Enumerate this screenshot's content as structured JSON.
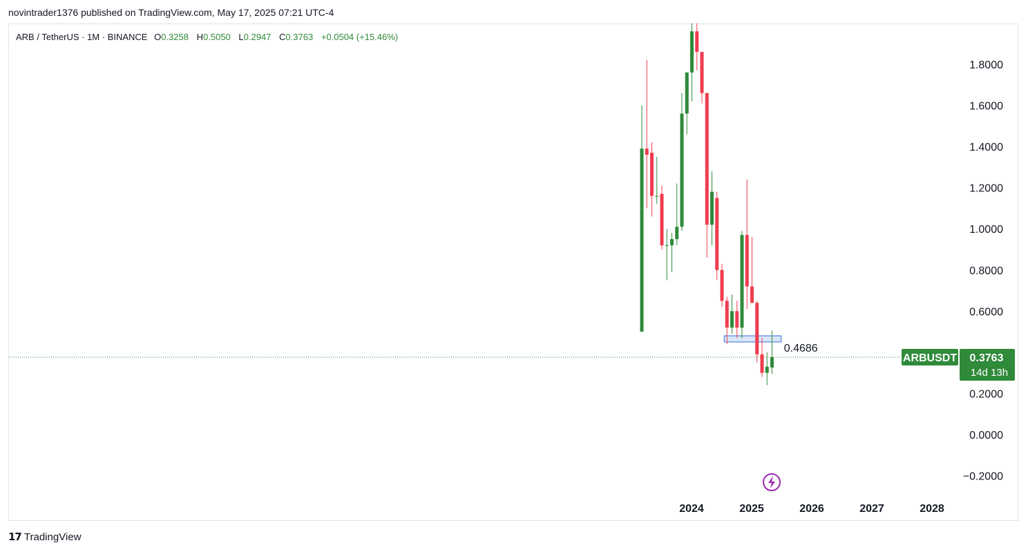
{
  "header": {
    "publish_text": "novintrader1376 published on TradingView.com, May 17, 2025 07:21 UTC-4"
  },
  "legend": {
    "symbol": "ARB / TetherUS · 1M · BINANCE",
    "o_label": "O",
    "o_value": "0.3258",
    "h_label": "H",
    "h_value": "0.5050",
    "l_label": "L",
    "l_value": "0.2947",
    "c_label": "C",
    "c_value": "0.3763",
    "change": "+0.0504 (+15.46%)"
  },
  "price_tag": {
    "ticker": "ARBUSDT",
    "price": "0.3763",
    "countdown": "14d 13h"
  },
  "annotation": {
    "label": "0.4686"
  },
  "footer": {
    "brand": "TradingView"
  },
  "colors": {
    "up": "#2f8a3a",
    "down": "#ef3d4f",
    "price_tag": "#2f8a3a",
    "zone_fill": "#c9dcf7",
    "zone_stroke": "#3b6fd6",
    "flash_icon": "#9c27b0"
  },
  "chart_data": {
    "type": "candlestick",
    "timeframe": "1M",
    "ylim": [
      -0.25,
      2.0
    ],
    "y_ticks": [
      "1.8000",
      "1.6000",
      "1.4000",
      "1.2000",
      "1.0000",
      "0.8000",
      "0.6000",
      "0.2000",
      "0.0000",
      "−0.2000"
    ],
    "y_tick_values": [
      1.8,
      1.6,
      1.4,
      1.2,
      1.0,
      0.8,
      0.6,
      0.2,
      0.0,
      -0.2
    ],
    "x_ticks": [
      "2024",
      "2025",
      "2026",
      "2027",
      "2028"
    ],
    "x_tick_years": [
      2024,
      2025,
      2026,
      2027,
      2028
    ],
    "candles": [
      {
        "t": "2023-03",
        "o": 0.5,
        "h": 1.6,
        "l": 0.5,
        "c": 1.39
      },
      {
        "t": "2023-04",
        "o": 1.39,
        "h": 1.82,
        "l": 1.1,
        "c": 1.36
      },
      {
        "t": "2023-05",
        "o": 1.37,
        "h": 1.42,
        "l": 1.06,
        "c": 1.16
      },
      {
        "t": "2023-06",
        "o": 1.16,
        "h": 1.35,
        "l": 1.12,
        "c": 1.16
      },
      {
        "t": "2023-07",
        "o": 1.17,
        "h": 1.21,
        "l": 0.9,
        "c": 0.92
      },
      {
        "t": "2023-08",
        "o": 0.92,
        "h": 1.0,
        "l": 0.75,
        "c": 0.92
      },
      {
        "t": "2023-09",
        "o": 0.92,
        "h": 0.98,
        "l": 0.79,
        "c": 0.95
      },
      {
        "t": "2023-10",
        "o": 0.95,
        "h": 1.22,
        "l": 0.92,
        "c": 1.01
      },
      {
        "t": "2023-11",
        "o": 1.01,
        "h": 1.66,
        "l": 0.99,
        "c": 1.56
      },
      {
        "t": "2023-12",
        "o": 1.56,
        "h": 1.76,
        "l": 1.46,
        "c": 1.76
      },
      {
        "t": "2024-01",
        "o": 1.76,
        "h": 2.0,
        "l": 1.62,
        "c": 1.96
      },
      {
        "t": "2024-02",
        "o": 1.96,
        "h": 2.0,
        "l": 1.77,
        "c": 1.86
      },
      {
        "t": "2024-03",
        "o": 1.86,
        "h": 1.86,
        "l": 1.61,
        "c": 1.66
      },
      {
        "t": "2024-04",
        "o": 1.66,
        "h": 1.66,
        "l": 0.86,
        "c": 1.02
      },
      {
        "t": "2024-05",
        "o": 1.02,
        "h": 1.28,
        "l": 0.92,
        "c": 1.18
      },
      {
        "t": "2024-06",
        "o": 1.15,
        "h": 1.18,
        "l": 0.75,
        "c": 0.8
      },
      {
        "t": "2024-07",
        "o": 0.8,
        "h": 0.83,
        "l": 0.62,
        "c": 0.65
      },
      {
        "t": "2024-08",
        "o": 0.65,
        "h": 0.67,
        "l": 0.44,
        "c": 0.52
      },
      {
        "t": "2024-09",
        "o": 0.52,
        "h": 0.68,
        "l": 0.49,
        "c": 0.6
      },
      {
        "t": "2024-10",
        "o": 0.6,
        "h": 0.65,
        "l": 0.47,
        "c": 0.52
      },
      {
        "t": "2024-11",
        "o": 0.52,
        "h": 0.99,
        "l": 0.47,
        "c": 0.97
      },
      {
        "t": "2024-12",
        "o": 0.97,
        "h": 1.24,
        "l": 0.61,
        "c": 0.72
      },
      {
        "t": "2025-01",
        "o": 0.72,
        "h": 0.96,
        "l": 0.64,
        "c": 0.64
      },
      {
        "t": "2025-02",
        "o": 0.64,
        "h": 0.65,
        "l": 0.35,
        "c": 0.39
      },
      {
        "t": "2025-03",
        "o": 0.39,
        "h": 0.47,
        "l": 0.28,
        "c": 0.3
      },
      {
        "t": "2025-04",
        "o": 0.3,
        "h": 0.4,
        "l": 0.24,
        "c": 0.33
      },
      {
        "t": "2025-05",
        "o": 0.3258,
        "h": 0.505,
        "l": 0.2947,
        "c": 0.3763
      }
    ],
    "horizontal_zone": {
      "from": "2024-08",
      "to": "2025-06",
      "low": 0.45,
      "high": 0.48,
      "label": "0.4686"
    },
    "last_price": 0.3763
  }
}
